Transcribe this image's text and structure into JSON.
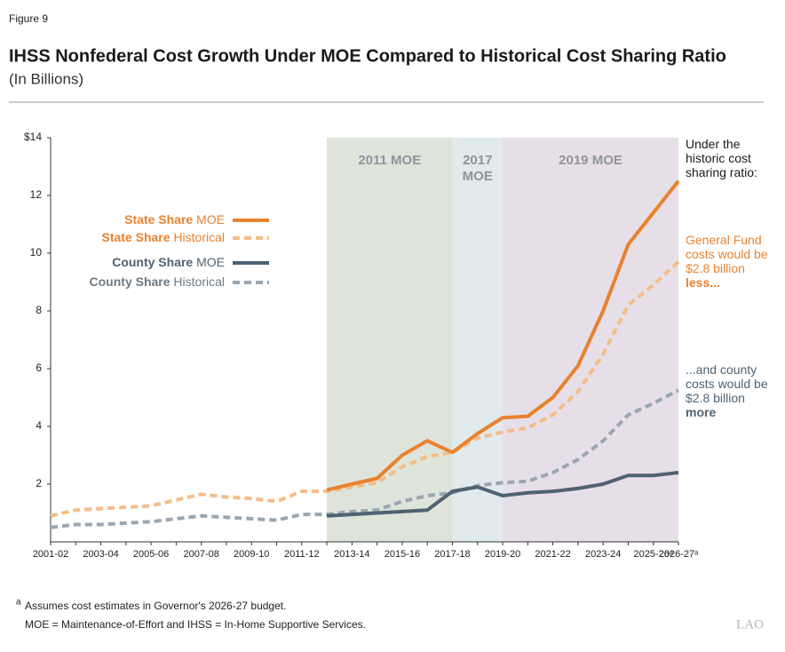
{
  "figure_label": "Figure 9",
  "chart_data": {
    "type": "line",
    "title": "IHSS Nonfederal Cost Growth Under MOE Compared to Historical Cost Sharing Ratio",
    "subtitle": "(In Billions)",
    "categories": [
      "2001-02",
      null,
      "2003-04",
      null,
      "2005-06",
      null,
      "2007-08",
      null,
      "2009-10",
      null,
      "2011-12",
      null,
      "2013-14",
      null,
      "2015-16",
      null,
      "2017-18",
      null,
      "2019-20",
      null,
      "2021-22",
      null,
      "2023-24",
      null,
      "2025-26ᵃ",
      "2026-27ᵃ"
    ],
    "ylim": [
      0,
      14
    ],
    "yticks": [
      2,
      4,
      6,
      8,
      10,
      12,
      {
        "value": 14,
        "label": "$14"
      }
    ],
    "periods": [
      {
        "label": "2011 MOE",
        "start": 11,
        "end": 16,
        "color": "#dfe4db"
      },
      {
        "label": "2017 MOE",
        "start": 16,
        "end": 18,
        "color": "#e1eaed"
      },
      {
        "label": "2019 MOE",
        "start": 18,
        "end": 25,
        "color": "#e7dfe7"
      }
    ],
    "series": [
      {
        "group": "State Share",
        "name": "MOE",
        "color": "#e8822f",
        "dashed": false,
        "values": [
          null,
          null,
          null,
          null,
          null,
          null,
          null,
          null,
          null,
          null,
          null,
          1.8,
          2.0,
          2.2,
          3.0,
          3.5,
          3.1,
          3.75,
          4.3,
          4.35,
          5.0,
          6.1,
          8.0,
          10.3,
          11.4,
          12.5
        ]
      },
      {
        "group": "State Share",
        "name": "Historical",
        "color": "#f4bd88",
        "dashed": true,
        "values": [
          0.9,
          1.1,
          1.15,
          1.2,
          1.25,
          1.45,
          1.65,
          1.55,
          1.5,
          1.4,
          1.75,
          1.75,
          1.9,
          2.05,
          2.6,
          2.95,
          3.1,
          3.6,
          3.8,
          3.95,
          4.4,
          5.2,
          6.5,
          8.2,
          8.9,
          9.7
        ]
      },
      {
        "group": "County Share",
        "name": "MOE",
        "color": "#4f6272",
        "dashed": false,
        "values": [
          null,
          null,
          null,
          null,
          null,
          null,
          null,
          null,
          null,
          null,
          null,
          0.9,
          0.95,
          1.0,
          1.05,
          1.1,
          1.75,
          1.9,
          1.6,
          1.7,
          1.75,
          1.85,
          2.0,
          2.3,
          2.3,
          2.4
        ]
      },
      {
        "group": "County Share",
        "name": "Historical",
        "color": "#9ba6b1",
        "dashed": true,
        "values": [
          0.5,
          0.6,
          0.6,
          0.65,
          0.7,
          0.8,
          0.9,
          0.85,
          0.8,
          0.75,
          0.95,
          0.95,
          1.05,
          1.1,
          1.4,
          1.6,
          1.7,
          1.95,
          2.05,
          2.1,
          2.4,
          2.85,
          3.5,
          4.4,
          4.8,
          5.25
        ]
      }
    ],
    "annotations": [
      {
        "text": "Under the historic cost sharing ratio:",
        "color": "#1a1a1a"
      },
      {
        "text": "General Fund costs would be $2.8 billion",
        "bold": "less...",
        "color": "#e8822f"
      },
      {
        "text": "...and county costs would be $2.8 billion",
        "bold": "more",
        "color": "#4f6272"
      }
    ]
  },
  "footnotes": {
    "marker": "a",
    "note": "Assumes cost estimates in Governor's 2026-27 budget.",
    "definitions": "MOE = Maintenance-of-Effort and IHSS = In-Home Supportive Services."
  },
  "logo": "LAO"
}
